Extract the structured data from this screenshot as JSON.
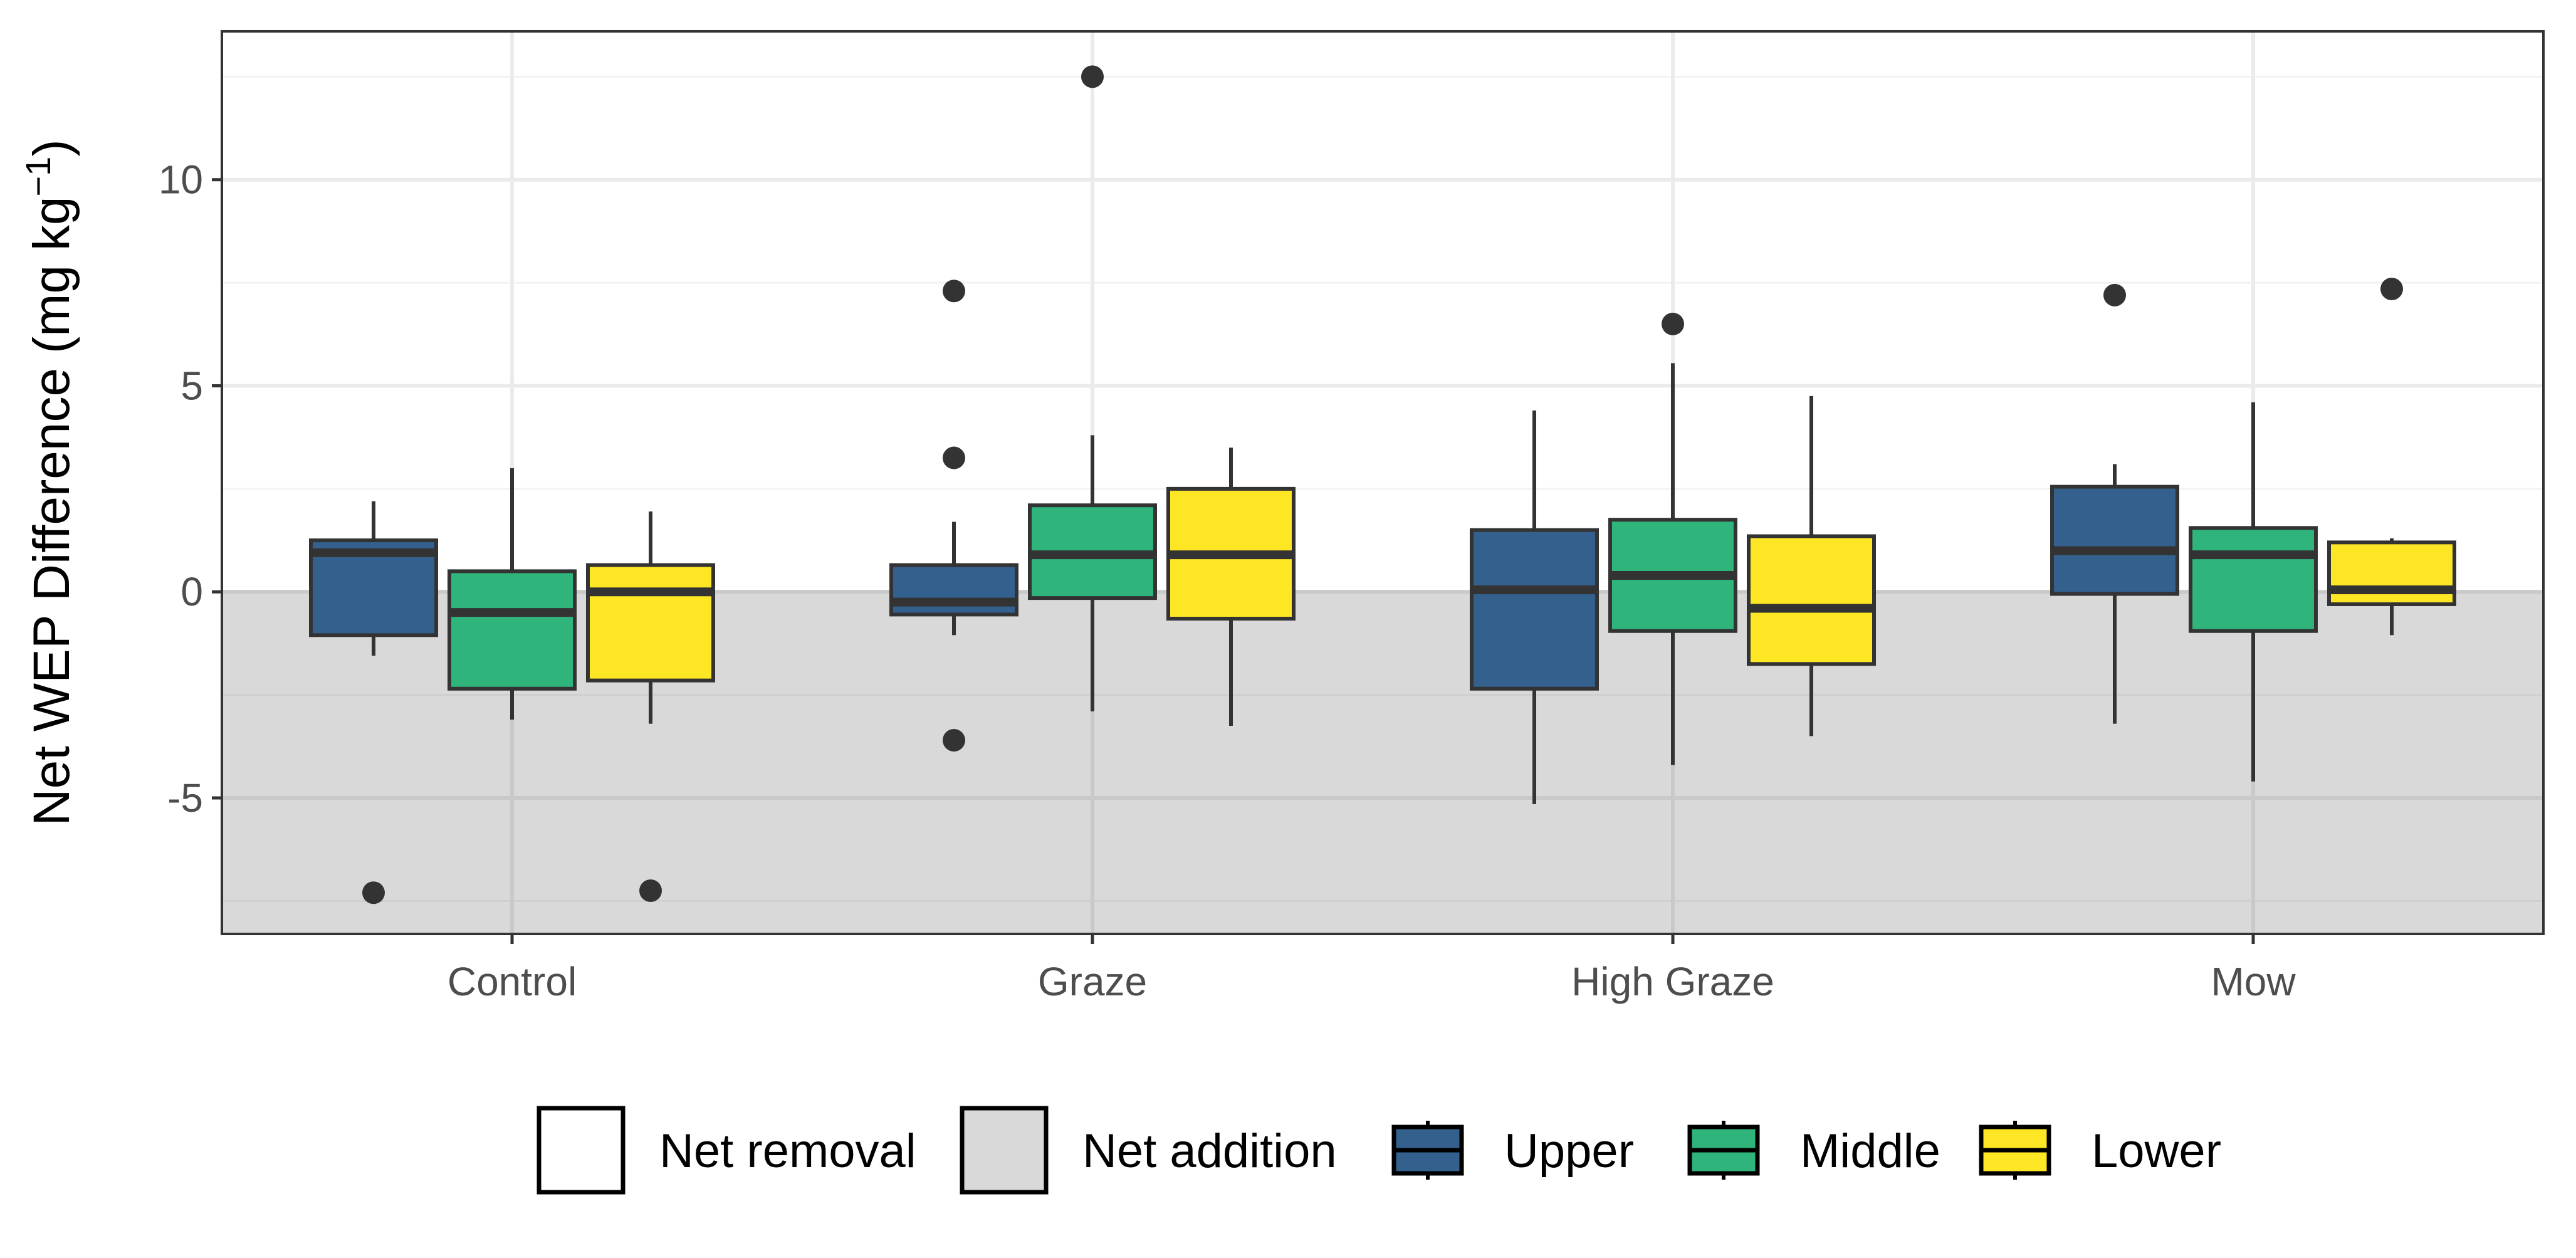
{
  "chart_data": {
    "type": "boxplot",
    "title": "",
    "xlabel": "",
    "ylabel": "Net WEP Difference (mg kg",
    "ylabel_sup": "−1",
    "ylabel_close": ")",
    "ylim": [
      -8.3,
      13.6
    ],
    "yticks": [
      {
        "value": -5,
        "label": "-5"
      },
      {
        "value": 0,
        "label": "0"
      },
      {
        "value": 5,
        "label": "5"
      },
      {
        "value": 10,
        "label": "10"
      }
    ],
    "minor_yticks": [
      -7.5,
      -2.5,
      2.5,
      7.5,
      12.5
    ],
    "grid": true,
    "shaded_region": {
      "from": -8.3,
      "to": 0,
      "label": "Net addition",
      "color": "#d9d9d9"
    },
    "unshaded_label": "Net removal",
    "categories": [
      "Control",
      "Graze",
      "High Graze",
      "Mow"
    ],
    "series": [
      {
        "name": "Upper",
        "color": "#33608c",
        "boxes": [
          {
            "q1": -1.05,
            "median": 0.95,
            "q3": 1.25,
            "low": -1.55,
            "high": 2.2,
            "outliers": [
              -7.3
            ]
          },
          {
            "q1": -0.55,
            "median": -0.25,
            "q3": 0.65,
            "low": -1.05,
            "high": 1.7,
            "outliers": [
              7.3,
              3.25,
              -3.6
            ]
          },
          {
            "q1": -2.35,
            "median": 0.05,
            "q3": 1.5,
            "low": -5.15,
            "high": 4.4,
            "outliers": []
          },
          {
            "q1": -0.05,
            "median": 1.0,
            "q3": 2.55,
            "low": -3.2,
            "high": 3.1,
            "outliers": [
              7.2
            ]
          }
        ]
      },
      {
        "name": "Middle",
        "color": "#2fb47c",
        "boxes": [
          {
            "q1": -2.35,
            "median": -0.5,
            "q3": 0.5,
            "low": -3.1,
            "high": 3.0,
            "outliers": []
          },
          {
            "q1": -0.15,
            "median": 0.9,
            "q3": 2.1,
            "low": -2.9,
            "high": 3.8,
            "outliers": [
              12.5
            ]
          },
          {
            "q1": -0.95,
            "median": 0.4,
            "q3": 1.75,
            "low": -4.2,
            "high": 5.55,
            "outliers": [
              6.5
            ]
          },
          {
            "q1": -0.95,
            "median": 0.9,
            "q3": 1.55,
            "low": -4.6,
            "high": 4.6,
            "outliers": []
          }
        ]
      },
      {
        "name": "Lower",
        "color": "#fde725",
        "boxes": [
          {
            "q1": -2.15,
            "median": 0.0,
            "q3": 0.65,
            "low": -3.2,
            "high": 1.95,
            "outliers": [
              -7.25
            ]
          },
          {
            "q1": -0.65,
            "median": 0.9,
            "q3": 2.5,
            "low": -3.25,
            "high": 3.5,
            "outliers": []
          },
          {
            "q1": -1.75,
            "median": -0.4,
            "q3": 1.35,
            "low": -3.5,
            "high": 4.75,
            "outliers": []
          },
          {
            "q1": -0.3,
            "median": 0.05,
            "q3": 1.2,
            "low": -1.05,
            "high": 1.3,
            "outliers": [
              7.35
            ]
          }
        ]
      }
    ],
    "legend": {
      "position": "bottom",
      "items": [
        {
          "label": "Net removal",
          "kind": "fill",
          "color": "#ffffff"
        },
        {
          "label": "Net addition",
          "kind": "fill",
          "color": "#d9d9d9"
        },
        {
          "label": "Upper",
          "kind": "box",
          "color": "#33608c"
        },
        {
          "label": "Middle",
          "kind": "box",
          "color": "#2fb47c"
        },
        {
          "label": "Lower",
          "kind": "box",
          "color": "#fde725"
        }
      ]
    }
  }
}
